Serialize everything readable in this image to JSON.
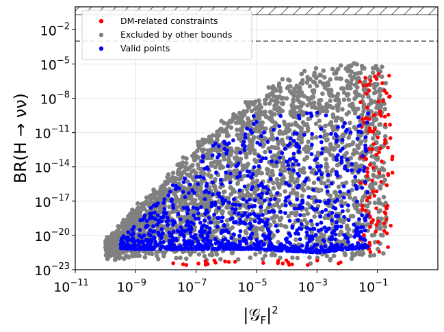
{
  "chart_data": {
    "type": "scatter",
    "xlabel": "|𝒢",
    "xlabel_sub": "F",
    "xlabel_suffix": "|",
    "xlabel_sup": "2",
    "ylabel": "BR(H → νν)",
    "x_log": true,
    "y_log": true,
    "xlim": [
      1e-11,
      10
    ],
    "ylim": [
      1e-23,
      1
    ],
    "grid": true,
    "legend_position": "top-left",
    "x_ticks": [
      {
        "base": "10",
        "exp": "−11",
        "value": 1e-11
      },
      {
        "base": "10",
        "exp": "−9",
        "value": 1e-09
      },
      {
        "base": "10",
        "exp": "−7",
        "value": 1e-07
      },
      {
        "base": "10",
        "exp": "−5",
        "value": 1e-05
      },
      {
        "base": "10",
        "exp": "−3",
        "value": 0.001
      },
      {
        "base": "10",
        "exp": "−1",
        "value": 0.1
      }
    ],
    "y_ticks": [
      {
        "base": "10",
        "exp": "−23",
        "value": 1e-23
      },
      {
        "base": "10",
        "exp": "−20",
        "value": 1e-20
      },
      {
        "base": "10",
        "exp": "−17",
        "value": 1e-17
      },
      {
        "base": "10",
        "exp": "−14",
        "value": 1e-14
      },
      {
        "base": "10",
        "exp": "−11",
        "value": 1e-11
      },
      {
        "base": "10",
        "exp": "−8",
        "value": 1e-08
      },
      {
        "base": "10",
        "exp": "−5",
        "value": 1e-05
      },
      {
        "base": "10",
        "exp": "−2",
        "value": 0.01
      }
    ],
    "excluded_region_y_min": 0.2,
    "dashed_line_y": 0.001,
    "series": [
      {
        "name": "DM-related constraints",
        "color": "#ff0000"
      },
      {
        "name": "Excluded by other bounds",
        "color": "#808080"
      },
      {
        "name": "Valid points",
        "color": "#0000ff"
      }
    ],
    "region_envelope": {
      "upper": [
        [
          1e-10,
          3e-21
        ],
        [
          1e-09,
          2e-18
        ],
        [
          1e-08,
          1e-15
        ],
        [
          1e-07,
          5e-13
        ],
        [
          1e-06,
          2e-10
        ],
        [
          1e-05,
          1e-08
        ],
        [
          0.0001,
          5e-07
        ],
        [
          0.001,
          3e-06
        ],
        [
          0.01,
          1e-05
        ],
        [
          0.05,
          8e-06
        ]
      ],
      "lower": [
        [
          1e-10,
          3e-22
        ],
        [
          1e-09,
          2e-22
        ],
        [
          1e-07,
          2e-22
        ],
        [
          1e-05,
          2e-22
        ],
        [
          0.001,
          1e-22
        ],
        [
          0.05,
          3e-22
        ]
      ]
    }
  }
}
